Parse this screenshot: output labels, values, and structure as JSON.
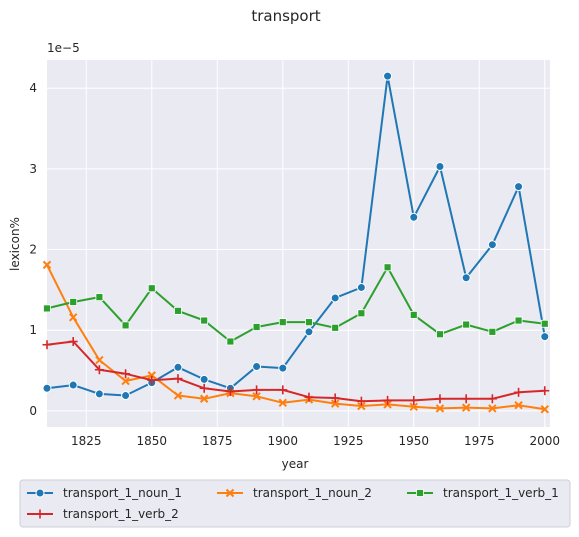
{
  "chart_data": {
    "type": "line",
    "title": "transport",
    "xlabel": "year",
    "ylabel": "lexicon%",
    "y_offset_label": "1e−5",
    "xlim": [
      1810,
      2002
    ],
    "ylim": [
      -0.2,
      4.35
    ],
    "x_ticks": [
      1825,
      1850,
      1875,
      1900,
      1925,
      1950,
      1975,
      2000
    ],
    "x_tick_labels": [
      "1825",
      "1850",
      "1875",
      "1900",
      "1925",
      "1950",
      "1975",
      "2000"
    ],
    "y_ticks": [
      0,
      1,
      2,
      3,
      4
    ],
    "y_tick_labels": [
      "0",
      "1",
      "2",
      "3",
      "4"
    ],
    "grid": true,
    "legend_position": "bottom",
    "x": [
      1810,
      1820,
      1830,
      1840,
      1850,
      1860,
      1870,
      1880,
      1890,
      1900,
      1910,
      1920,
      1930,
      1940,
      1950,
      1960,
      1970,
      1980,
      1990,
      2000
    ],
    "series": [
      {
        "name": "transport_1_noun_1",
        "color": "#1f77b4",
        "marker": "circle",
        "values": [
          0.28,
          0.32,
          0.21,
          0.19,
          0.35,
          0.54,
          0.39,
          0.28,
          0.55,
          0.53,
          0.98,
          1.4,
          1.53,
          4.15,
          2.4,
          3.03,
          1.65,
          2.06,
          2.78,
          0.92
        ]
      },
      {
        "name": "transport_1_noun_2",
        "color": "#ff7f0e",
        "marker": "x",
        "values": [
          1.81,
          1.16,
          0.63,
          0.37,
          0.44,
          0.19,
          0.15,
          0.22,
          0.18,
          0.1,
          0.14,
          0.09,
          0.06,
          0.08,
          0.05,
          0.03,
          0.04,
          0.03,
          0.07,
          0.02
        ]
      },
      {
        "name": "transport_1_verb_1",
        "color": "#2ca02c",
        "marker": "square",
        "values": [
          1.27,
          1.35,
          1.41,
          1.06,
          1.52,
          1.24,
          1.12,
          0.86,
          1.04,
          1.1,
          1.1,
          1.03,
          1.21,
          1.78,
          1.19,
          0.95,
          1.07,
          0.98,
          1.12,
          1.08
        ]
      },
      {
        "name": "transport_1_verb_2",
        "color": "#d62728",
        "marker": "plus",
        "values": [
          0.82,
          0.86,
          0.51,
          0.46,
          0.38,
          0.4,
          0.28,
          0.24,
          0.26,
          0.26,
          0.17,
          0.16,
          0.12,
          0.13,
          0.13,
          0.15,
          0.15,
          0.15,
          0.23,
          0.25
        ]
      }
    ]
  },
  "colors": {
    "plot_background": "#eaeaf2",
    "grid": "#ffffff",
    "text": "#262626"
  }
}
